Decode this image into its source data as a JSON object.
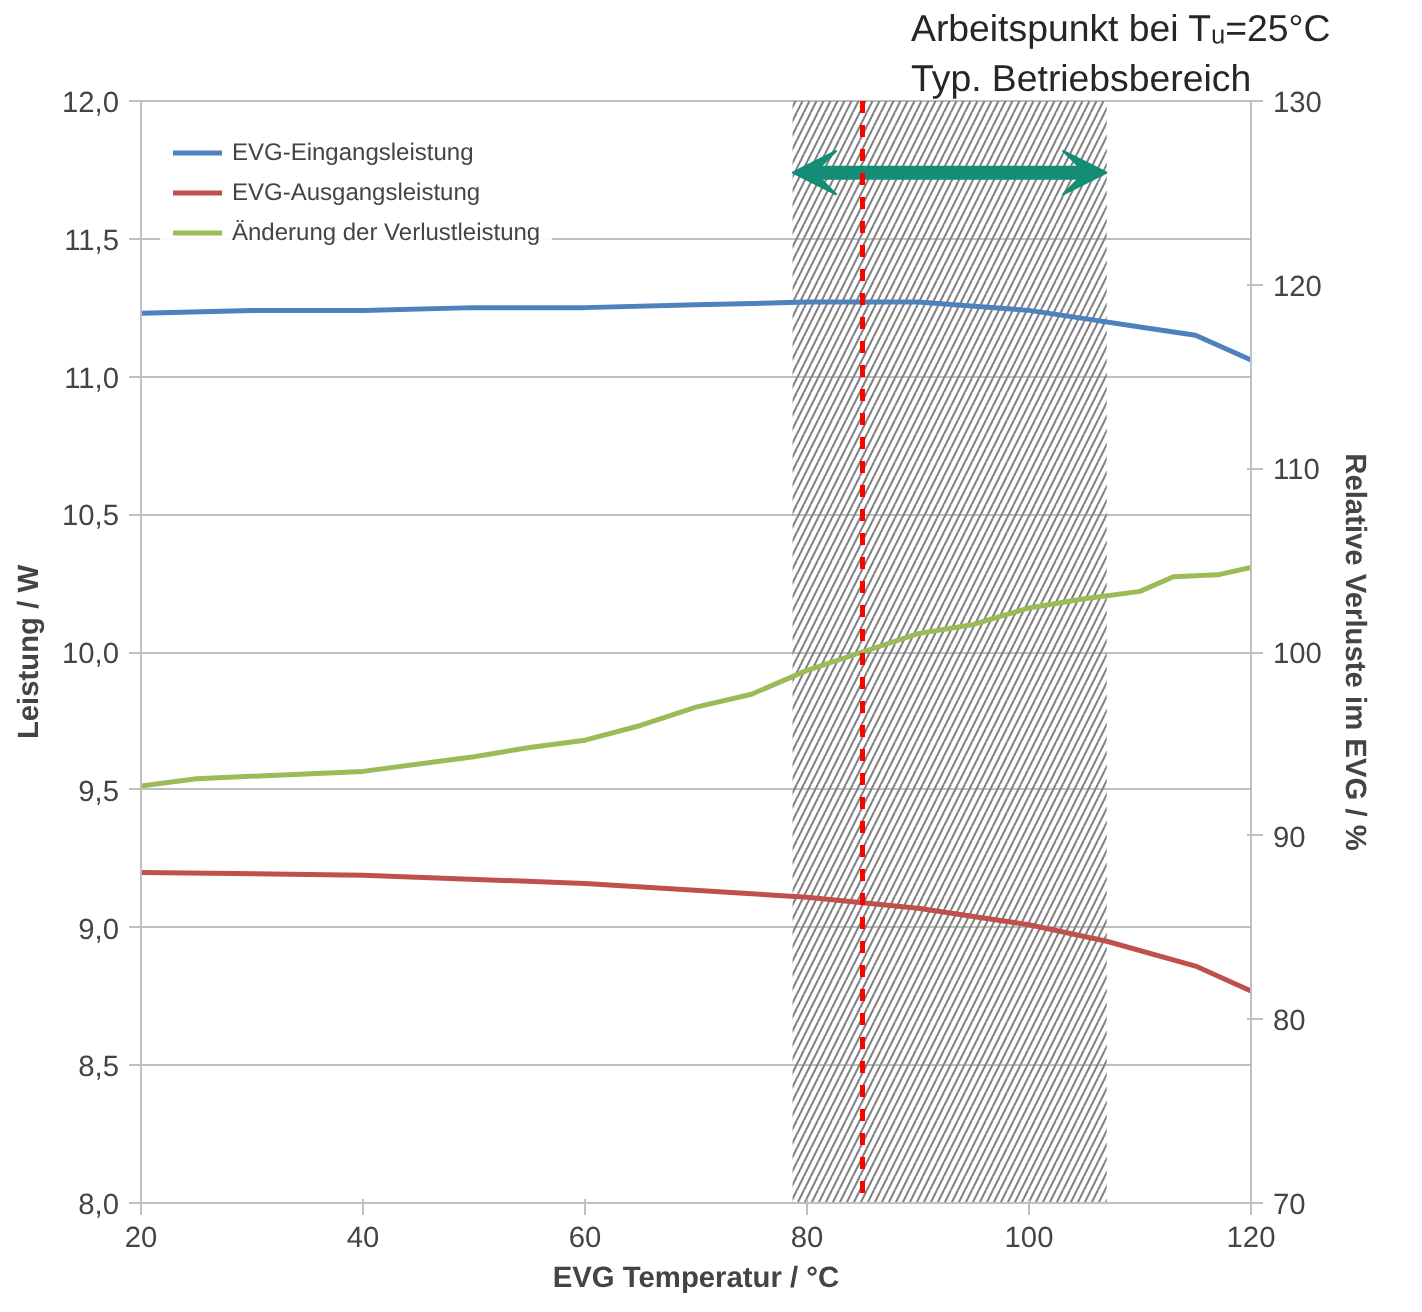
{
  "chart_data": {
    "type": "line",
    "xlabel": "EVG Temperatur / °C",
    "ylabel": "Leistung / W",
    "y2label": "Relative Verluste im EVG / %",
    "series": [
      {
        "name": "EVG-Eingangsleistung",
        "color": "#4f81bd",
        "x": [
          20,
          30,
          40,
          50,
          60,
          70,
          80,
          90,
          100,
          105,
          110,
          115,
          120
        ],
        "values": [
          11.23,
          11.24,
          11.24,
          11.25,
          11.25,
          11.26,
          11.27,
          11.27,
          11.24,
          11.21,
          11.18,
          11.15,
          11.06
        ]
      },
      {
        "name": "EVG-Ausgangsleistung",
        "color": "#c0504d",
        "x": [
          20,
          40,
          60,
          80,
          85,
          90,
          100,
          107,
          115,
          120
        ],
        "values": [
          9.2,
          9.19,
          9.16,
          9.11,
          9.09,
          9.07,
          9.01,
          8.95,
          8.86,
          8.77
        ]
      },
      {
        "name": "Änderung der Verlustleistung",
        "color": "#9bbb59",
        "axis": "y2",
        "x": [
          20,
          25,
          40,
          50,
          55,
          60,
          65,
          70,
          75,
          80,
          85,
          90,
          95,
          100,
          105,
          110,
          113,
          117,
          120
        ],
        "values": [
          92.7,
          93.1,
          93.5,
          94.3,
          94.8,
          95.2,
          96.0,
          97.0,
          97.7,
          99.0,
          100.0,
          101.0,
          101.5,
          102.4,
          102.9,
          103.3,
          104.1,
          104.2,
          104.6
        ]
      }
    ],
    "xlim": [
      20,
      120
    ],
    "xticks": [
      20,
      40,
      60,
      80,
      100,
      120
    ],
    "ylim": [
      8,
      12
    ],
    "yticks": [
      {
        "value": 8,
        "label": "8,0"
      },
      {
        "value": 8.5,
        "label": "8,5"
      },
      {
        "value": 9,
        "label": "9,0"
      },
      {
        "value": 9.5,
        "label": "9,5"
      },
      {
        "value": 10,
        "label": "10,0"
      },
      {
        "value": 10.5,
        "label": "10,5"
      },
      {
        "value": 11,
        "label": "11,0"
      },
      {
        "value": 11.5,
        "label": "11,5"
      },
      {
        "value": 12,
        "label": "12,0"
      }
    ],
    "y2lim": [
      70,
      130
    ],
    "y2ticks": [
      70,
      80,
      90,
      100,
      110,
      120,
      130
    ],
    "ref_lines": [
      {
        "axis": "x",
        "value": 85,
        "color": "#ff0000",
        "line_style": "dashed"
      }
    ],
    "annotations": [
      "Arbeitspunkt bei Tᵤ=25°C"
    ],
    "bands": [
      {
        "axis": "x",
        "from": 78.7,
        "to": 107,
        "label": "Typ. Betriebsbereich",
        "color": "#808080"
      }
    ],
    "grid": "y",
    "legend": "top left",
    "line_style": "solid",
    "marker": "none"
  }
}
